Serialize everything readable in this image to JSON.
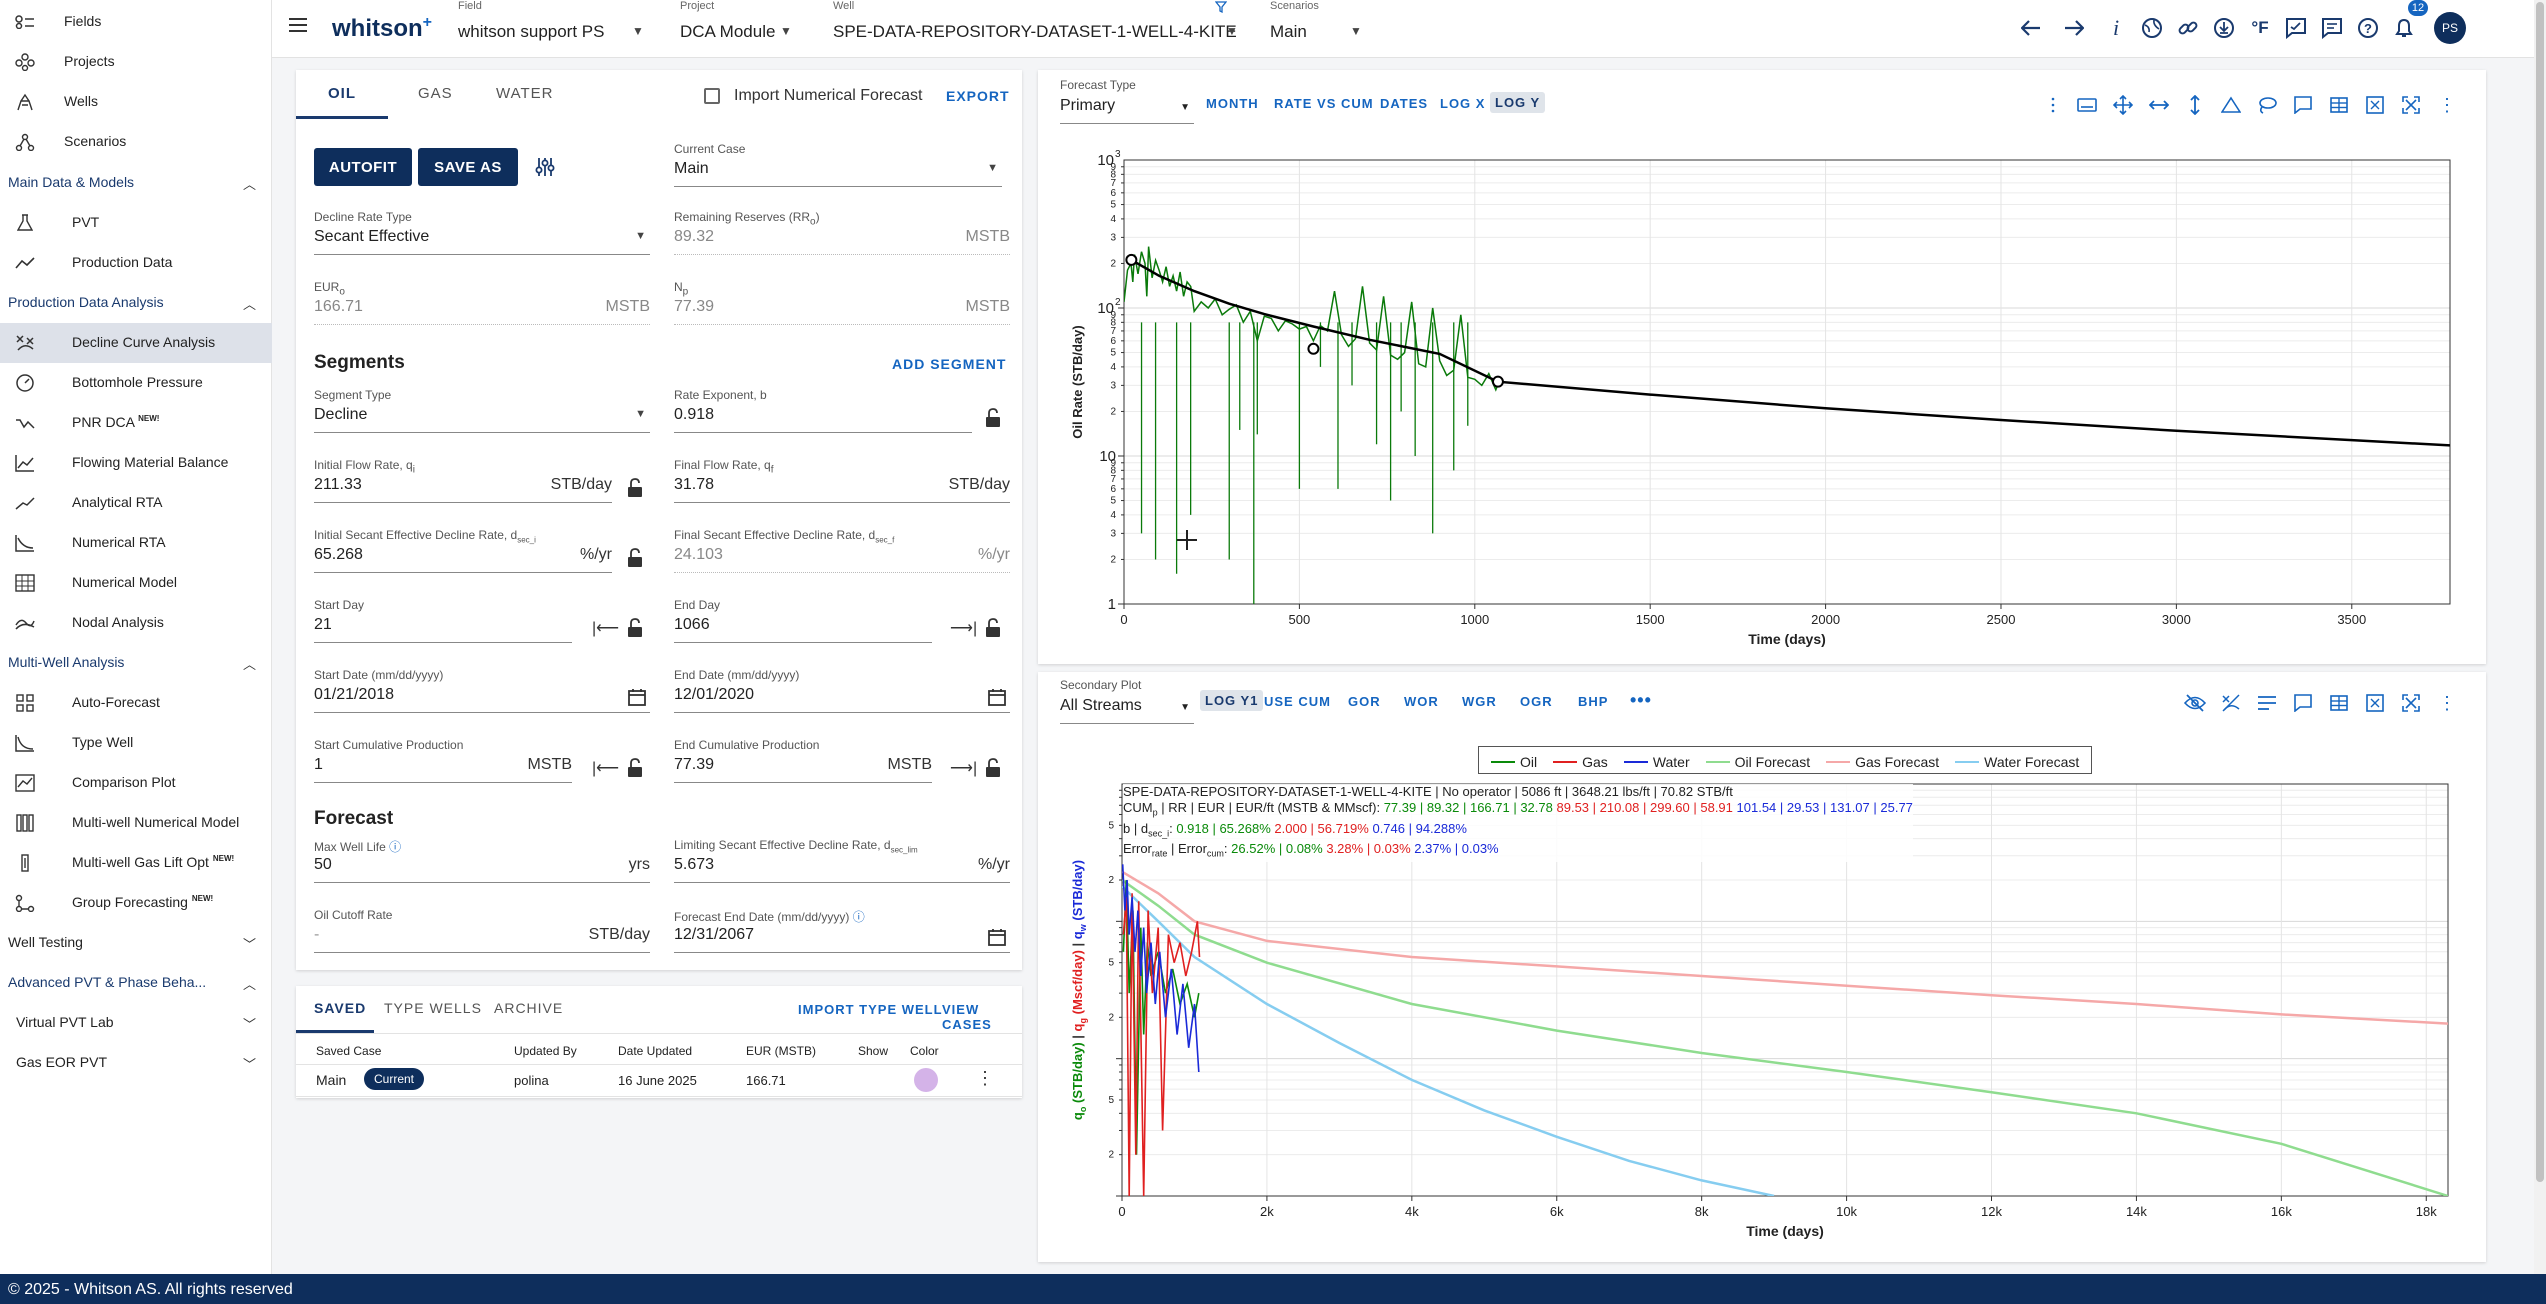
{
  "app": {
    "logo": "whitson",
    "logo_sup": "+",
    "footer": "© 2025 - Whitson AS. All rights reserved"
  },
  "topbar": {
    "field": {
      "label": "Field",
      "value": "whitson support PS"
    },
    "project": {
      "label": "Project",
      "value": "DCA Module"
    },
    "well": {
      "label": "Well",
      "value": "SPE-DATA-REPOSITORY-DATASET-1-WELL-4-KITE"
    },
    "scenarios": {
      "label": "Scenarios",
      "value": "Main"
    },
    "units": "°F",
    "notifications": "12",
    "avatar": "PS"
  },
  "sidebar": {
    "top": [
      {
        "label": "Fields",
        "icon": "fields-icon"
      },
      {
        "label": "Projects",
        "icon": "projects-icon"
      },
      {
        "label": "Wells",
        "icon": "wells-icon"
      },
      {
        "label": "Scenarios",
        "icon": "scenarios-icon"
      }
    ],
    "sections": [
      {
        "label": "Main Data & Models",
        "items": [
          {
            "label": "PVT"
          },
          {
            "label": "Production Data"
          }
        ]
      },
      {
        "label": "Production Data Analysis",
        "items": [
          {
            "label": "Decline Curve Analysis"
          },
          {
            "label": "Bottomhole Pressure"
          },
          {
            "label": "PNR DCA",
            "new": "NEW!"
          },
          {
            "label": "Flowing Material Balance"
          },
          {
            "label": "Analytical RTA"
          },
          {
            "label": "Numerical RTA"
          },
          {
            "label": "Numerical Model"
          },
          {
            "label": "Nodal Analysis"
          }
        ]
      },
      {
        "label": "Multi-Well Analysis",
        "items": [
          {
            "label": "Auto-Forecast"
          },
          {
            "label": "Type Well"
          },
          {
            "label": "Comparison Plot"
          },
          {
            "label": "Multi-well Numerical Model"
          },
          {
            "label": "Multi-well Gas Lift Opt",
            "new": "NEW!"
          },
          {
            "label": "Group Forecasting",
            "new": "NEW!"
          }
        ]
      },
      {
        "label": "Well Testing"
      },
      {
        "label": "Advanced PVT & Phase Beha..."
      },
      {
        "label": "Virtual PVT Lab"
      },
      {
        "label": "Gas EOR PVT"
      }
    ]
  },
  "left": {
    "tabs": [
      "OIL",
      "GAS",
      "WATER"
    ],
    "import_numerical": "Import Numerical Forecast",
    "export": "EXPORT",
    "autofit": "AUTOFIT",
    "save_as": "SAVE AS",
    "current_case": {
      "label": "Current Case",
      "value": "Main"
    },
    "decline_rate_type": {
      "label": "Decline Rate Type",
      "value": "Secant Effective"
    },
    "remaining_reserves": {
      "label": "Remaining Reserves (RR",
      "sub": "o",
      "label_end": ")",
      "value": "89.32",
      "unit": "MSTB"
    },
    "eur": {
      "label": "EUR",
      "sub": "o",
      "value": "166.71",
      "unit": "MSTB"
    },
    "np": {
      "label": "N",
      "sub": "p",
      "value": "77.39",
      "unit": "MSTB"
    },
    "segments_title": "Segments",
    "add_segment": "ADD SEGMENT",
    "segment_type": {
      "label": "Segment Type",
      "value": "Decline"
    },
    "rate_exponent": {
      "label": "Rate Exponent, b",
      "value": "0.918"
    },
    "initial_flow": {
      "label": "Initial Flow Rate, q",
      "sub": "i",
      "value": "211.33",
      "unit": "STB/day"
    },
    "final_flow": {
      "label": "Final Flow Rate, q",
      "sub": "f",
      "value": "31.78",
      "unit": "STB/day"
    },
    "initial_decline": {
      "label": "Initial Secant Effective Decline Rate, d",
      "sub": "sec_i",
      "value": "65.268",
      "unit": "%/yr"
    },
    "final_decline": {
      "label": "Final Secant Effective Decline Rate, d",
      "sub": "sec_f",
      "value": "24.103",
      "unit": "%/yr"
    },
    "start_day": {
      "label": "Start Day",
      "value": "21"
    },
    "end_day": {
      "label": "End Day",
      "value": "1066"
    },
    "start_date": {
      "label": "Start Date (mm/dd/yyyy)",
      "value": "01/21/2018"
    },
    "end_date": {
      "label": "End Date (mm/dd/yyyy)",
      "value": "12/01/2020"
    },
    "start_cum": {
      "label": "Start Cumulative Production",
      "value": "1",
      "unit": "MSTB"
    },
    "end_cum": {
      "label": "End Cumulative Production",
      "value": "77.39",
      "unit": "MSTB"
    },
    "forecast_title": "Forecast",
    "max_well_life": {
      "label": "Max Well Life",
      "value": "50",
      "unit": "yrs"
    },
    "limiting_decline": {
      "label": "Limiting Secant Effective Decline Rate, d",
      "sub": "sec_lim",
      "value": "5.673",
      "unit": "%/yr"
    },
    "oil_cutoff": {
      "label": "Oil Cutoff Rate",
      "value": "-",
      "unit": "STB/day"
    },
    "forecast_end": {
      "label": "Forecast End Date (mm/dd/yyyy)",
      "value": "12/31/2067"
    },
    "bottom_tabs": [
      "SAVED",
      "TYPE WELLS",
      "ARCHIVE"
    ],
    "import_type_well": "IMPORT TYPE WELL",
    "view_cases": "VIEW CASES",
    "table": {
      "headers": [
        "Saved Case",
        "Updated By",
        "Date Updated",
        "EUR (MSTB)",
        "Show",
        "Color"
      ],
      "rows": [
        {
          "case": "Main",
          "badge": "Current",
          "by": "polina",
          "date": "16 June 2025",
          "eur": "166.71",
          "color": "#d4b3e8"
        }
      ]
    }
  },
  "plot1": {
    "type_label": "Forecast Type",
    "type_value": "Primary",
    "toolbar": [
      "MONTH",
      "RATE VS CUM",
      "DATES",
      "LOG X",
      "LOG Y"
    ],
    "selected": "LOG Y"
  },
  "plot2": {
    "label": "Secondary Plot",
    "value": "All Streams",
    "toolbar": [
      "LOG Y1",
      "USE CUM",
      "GOR",
      "WOR",
      "WGR",
      "OGR",
      "BHP"
    ],
    "selected": "LOG Y1"
  },
  "chart_data": [
    {
      "type": "line",
      "xlabel": "Time (days)",
      "ylabel": "Oil Rate (STB/day)",
      "xlim": [
        0,
        3780
      ],
      "ylim": [
        1,
        1000
      ],
      "yscale": "log",
      "xticks": [
        "0",
        "500",
        "1000",
        "1500",
        "2000",
        "2500",
        "3000",
        "3500"
      ],
      "yticks_major": [
        "1",
        "10",
        "10",
        "10"
      ],
      "yticks_major_sup": [
        "",
        "",
        "2",
        "3"
      ],
      "yticks_minor": [
        "2",
        "3",
        "4",
        "5",
        "6",
        "7",
        "8",
        "9"
      ],
      "series": [
        {
          "color": "#0a7a0a",
          "values_desc": "history",
          "x": [
            0,
            10,
            20,
            25,
            30,
            40,
            50,
            60,
            65,
            70,
            80,
            90,
            100,
            110,
            120,
            130,
            140,
            150,
            160,
            170,
            180,
            190,
            200,
            220,
            240,
            260,
            280,
            300,
            320,
            340,
            360,
            380,
            400,
            420,
            440,
            460,
            480,
            500,
            520,
            540,
            560,
            580,
            600,
            620,
            640,
            660,
            680,
            700,
            720,
            740,
            760,
            780,
            800,
            820,
            840,
            860,
            880,
            900,
            920,
            940,
            960,
            980,
            1000,
            1020,
            1040,
            1060,
            1070
          ],
          "y": [
            110,
            180,
            200,
            150,
            230,
            170,
            240,
            200,
            120,
            260,
            160,
            210,
            180,
            150,
            190,
            140,
            165,
            130,
            175,
            120,
            150,
            140,
            95,
            110,
            100,
            115,
            90,
            98,
            105,
            80,
            95,
            60,
            88,
            85,
            70,
            82,
            78,
            72,
            75,
            60,
            76,
            70,
            130,
            66,
            55,
            62,
            140,
            58,
            52,
            120,
            48,
            45,
            50,
            110,
            42,
            40,
            100,
            44,
            35,
            38,
            90,
            34,
            33,
            30,
            36,
            28,
            32
          ]
        },
        {
          "color": "#000000",
          "values_desc": "forecast",
          "x": [
            21,
            100,
            200,
            300,
            400,
            540,
            700,
            900,
            1066,
            1500,
            2000,
            2500,
            3000,
            3500,
            3780
          ],
          "y": [
            211.33,
            165,
            130,
            107,
            91,
            75,
            61,
            49,
            31.78,
            26,
            21,
            17.5,
            14.8,
            12.8,
            11.8
          ]
        }
      ],
      "markers": [
        {
          "x": 21,
          "y": 211.33
        },
        {
          "x": 540,
          "y": 53
        },
        {
          "x": 1066,
          "y": 31.78
        }
      ]
    },
    {
      "type": "line",
      "xlabel": "Time (days)",
      "xlim": [
        0,
        18300
      ],
      "ylim": [
        1,
        1000
      ],
      "yscale": "log",
      "xticks": [
        "0",
        "2k",
        "4k",
        "6k",
        "8k",
        "10k",
        "12k",
        "14k",
        "16k",
        "18k"
      ],
      "legend": [
        "Oil",
        "Gas",
        "Water",
        "Oil Forecast",
        "Gas Forecast",
        "Water Forecast"
      ],
      "legend_colors": [
        "#0a8a0a",
        "#e02020",
        "#1a2ad8",
        "#8fdc8f",
        "#f5a8a8",
        "#86cdf0"
      ],
      "ylabel_parts": [
        {
          "t": "q",
          "sub": "o",
          "rest": " (STB/day)",
          "c": "#0a8a0a"
        },
        {
          "t": " | ",
          "c": "#333"
        },
        {
          "t": "q",
          "sub": "g",
          "rest": " (Mscf/day)",
          "c": "#e02020"
        },
        {
          "t": " | ",
          "c": "#333"
        },
        {
          "t": "q",
          "sub": "w",
          "rest": " (STB/day)",
          "c": "#1a2ad8"
        }
      ],
      "info": {
        "l1": "SPE-DATA-REPOSITORY-DATASET-1-WELL-4-KITE | No operator | 5086 ft | 3648.21 lbs/ft | 70.82 STB/ft",
        "l2_prefix": "CUM",
        "l2_prefix_sub": "p",
        "l2_label": " | RR | EUR | EUR/ft (MSTB & MMscf): ",
        "l2_oil": "77.39 | 89.32 | 166.71 | 32.78",
        "l2_gas": "89.53 | 210.08 | 299.60 | 58.91",
        "l2_water": "101.54 | 29.53 | 131.07 | 25.77",
        "l3_label": "b | d",
        "l3_sub": "sec_i",
        "l3_sep": ": ",
        "l3_oil": "0.918 | 65.268%",
        "l3_gas": "2.000 | 56.719%",
        "l3_water": "0.746 | 94.288%",
        "l4_label1": "Error",
        "l4_sub1": "rate",
        "l4_label2": " | Error",
        "l4_sub2": "cum",
        "l4_sep": ": ",
        "l4_oil": "26.52% | 0.08%",
        "l4_gas": "3.28% | 0.03%",
        "l4_water": "2.37% | 0.03%"
      },
      "forecast": {
        "oil": {
          "x": [
            0,
            500,
            1000,
            2000,
            4000,
            6000,
            8000,
            10000,
            12000,
            14000,
            16000,
            18300
          ],
          "y": [
            200,
            130,
            80,
            50,
            25,
            16,
            11,
            8,
            5.7,
            4,
            2.4,
            1
          ]
        },
        "gas": {
          "x": [
            0,
            500,
            1000,
            2000,
            4000,
            6000,
            8000,
            10000,
            12000,
            14000,
            16000,
            18300
          ],
          "y": [
            230,
            160,
            100,
            72,
            55,
            47,
            40,
            34,
            29,
            25,
            21,
            18
          ]
        },
        "water": {
          "x": [
            0,
            500,
            1000,
            2000,
            3000,
            4000,
            5000,
            6000,
            7000,
            8000,
            9000
          ],
          "y": [
            180,
            100,
            55,
            25,
            13,
            7,
            4.2,
            2.7,
            1.8,
            1.3,
            1
          ]
        }
      }
    }
  ]
}
